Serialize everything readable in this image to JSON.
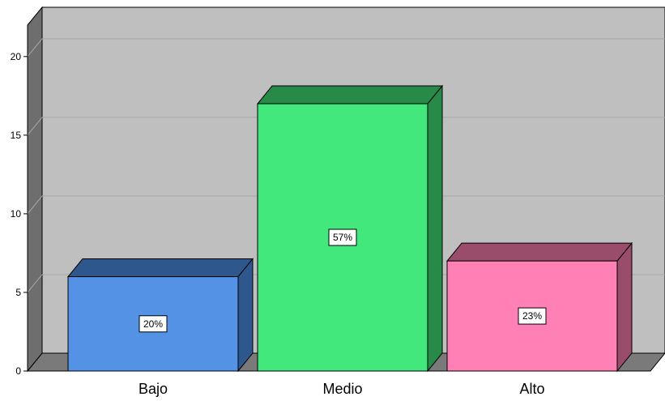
{
  "chart_data": {
    "type": "bar",
    "categories": [
      "Bajo",
      "Medio",
      "Alto"
    ],
    "values": [
      6,
      17,
      7
    ],
    "data_labels": [
      "20%",
      "57%",
      "23%"
    ],
    "ylim": [
      0,
      22
    ],
    "yticks": [
      0,
      5,
      10,
      15,
      20
    ],
    "grid": true,
    "style": "3d",
    "colors": {
      "bars": [
        "#5492e6",
        "#43e87d",
        "#ff80b4"
      ],
      "bar_sides": [
        "#2e578e",
        "#278a49",
        "#9a4d6a"
      ],
      "plot_background": "#bfbfbf",
      "wall": "#6e6e6e",
      "floor": "#7a7a7a",
      "gridline": "#a8a8a8"
    }
  }
}
